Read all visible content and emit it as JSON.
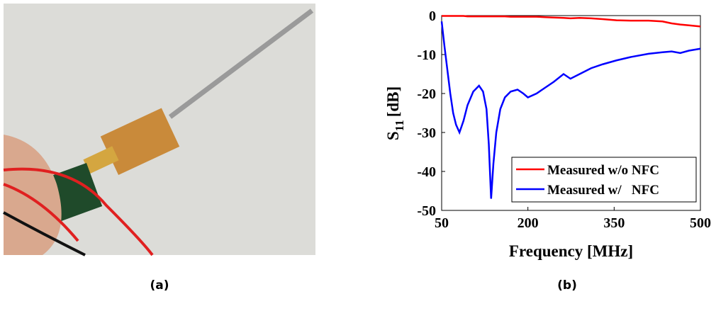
{
  "panels": [
    {
      "caption": "(a)"
    },
    {
      "caption": "(b)"
    }
  ],
  "chart_data": {
    "type": "line",
    "x_label": "Frequency [MHz]",
    "y_label": {
      "symbol": "S",
      "subscript": "11",
      "unit": "[dB]"
    },
    "x": [
      50,
      55,
      60,
      65,
      70,
      75,
      81,
      88,
      95,
      105,
      115,
      122,
      128,
      132,
      136,
      140,
      145,
      152,
      160,
      170,
      182,
      192,
      200,
      215,
      230,
      245,
      262,
      274,
      290,
      310,
      330,
      354,
      380,
      410,
      434,
      450,
      465,
      480,
      500
    ],
    "series": [
      {
        "name": "Measured w/o NFC",
        "color": "#ff0000",
        "values": [
          -0.1,
          -0.1,
          -0.1,
          -0.1,
          -0.1,
          -0.1,
          -0.1,
          -0.1,
          -0.2,
          -0.2,
          -0.2,
          -0.2,
          -0.2,
          -0.2,
          -0.2,
          -0.2,
          -0.2,
          -0.2,
          -0.2,
          -0.3,
          -0.3,
          -0.3,
          -0.3,
          -0.3,
          -0.4,
          -0.5,
          -0.6,
          -0.7,
          -0.6,
          -0.7,
          -0.9,
          -1.2,
          -1.3,
          -1.3,
          -1.5,
          -2.0,
          -2.3,
          -2.5,
          -2.8
        ]
      },
      {
        "name": "Measured w/   NFC",
        "color": "#0000ff",
        "values": [
          -1.5,
          -8,
          -14,
          -20,
          -25,
          -28,
          -30,
          -27,
          -23,
          -19.5,
          -18,
          -19.5,
          -24,
          -33,
          -47,
          -38,
          -30,
          -24,
          -21,
          -19.5,
          -19,
          -20,
          -21,
          -20,
          -18.5,
          -17,
          -15,
          -16.2,
          -15,
          -13.5,
          -12.5,
          -11.5,
          -10.6,
          -9.8,
          -9.4,
          -9.2,
          -9.6,
          -9,
          -8.5
        ]
      }
    ],
    "xlim": [
      50,
      500
    ],
    "xticks": [
      50,
      200,
      350,
      500
    ],
    "ylim": [
      -50,
      0
    ],
    "yticks": [
      0,
      -10,
      -20,
      -30,
      -40,
      -50
    ],
    "grid": false,
    "legend": "lower right"
  }
}
